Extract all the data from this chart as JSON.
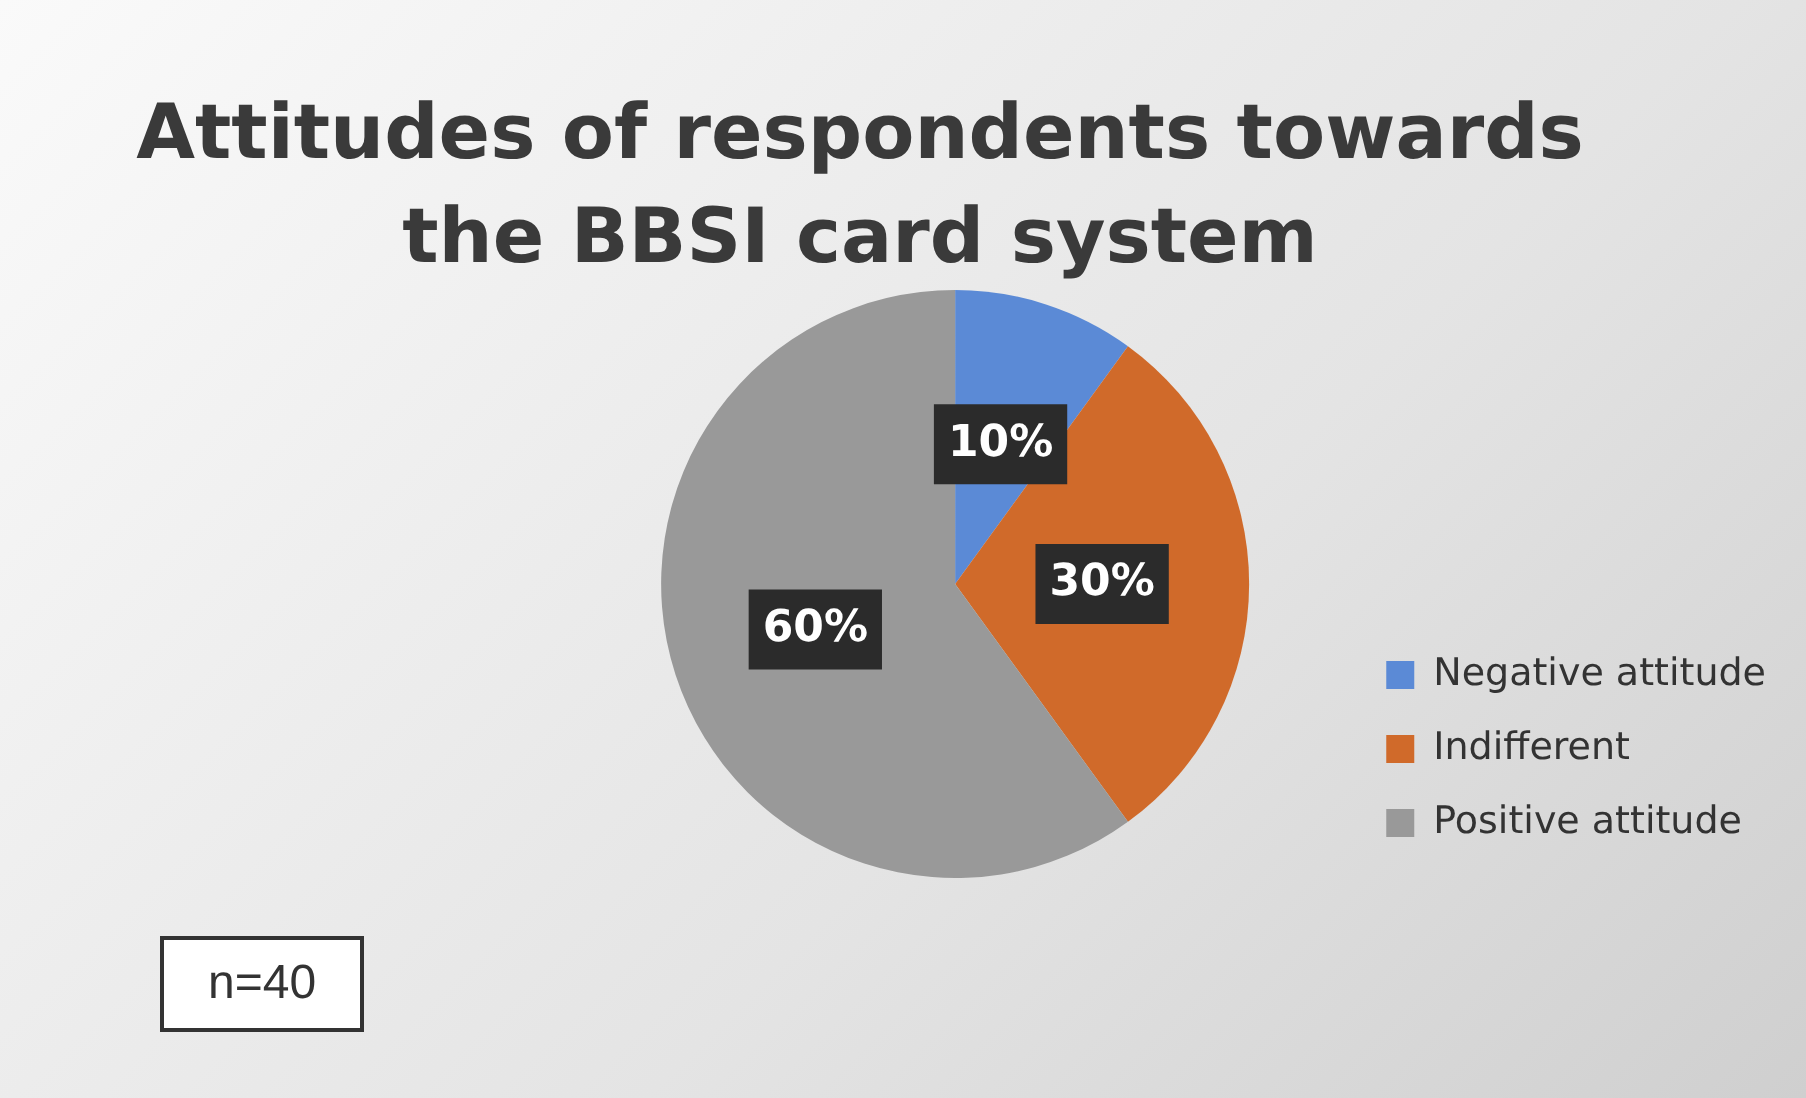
{
  "chart_data": {
    "type": "pie",
    "title": "Attitudes of  respondents towards the BBSI card system",
    "categories": [
      "Negative attitude",
      "Indifferent",
      "Positive attitude"
    ],
    "values": [
      10,
      30,
      60
    ],
    "colors": [
      "#5b8ad6",
      "#d06a2a",
      "#999999"
    ],
    "value_labels": [
      "10%",
      "30%",
      "60%"
    ],
    "legend": "right",
    "annotations": [
      "n=40"
    ]
  }
}
